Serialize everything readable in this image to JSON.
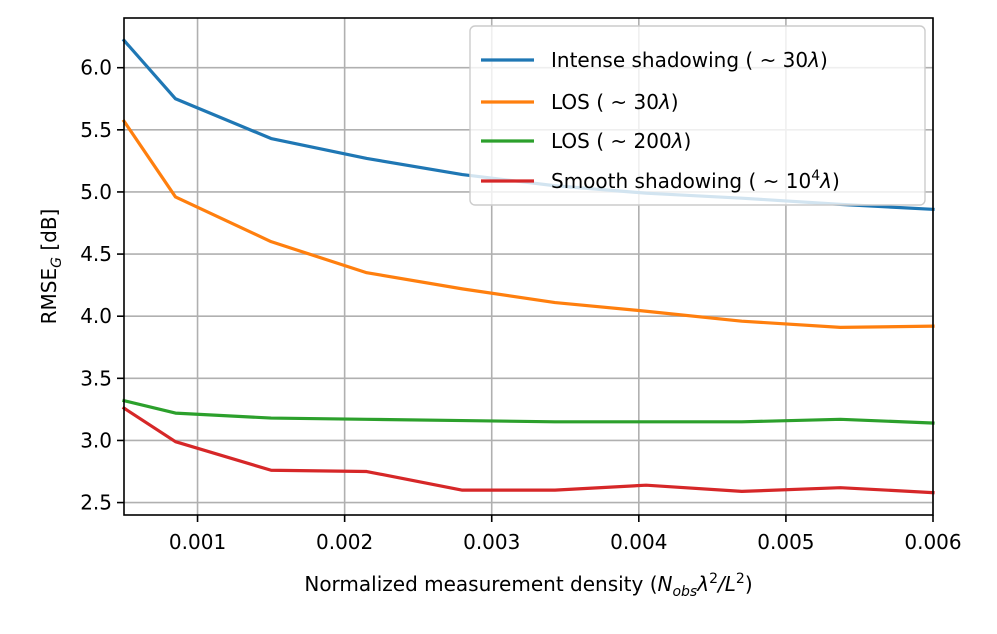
{
  "chart_data": {
    "type": "line",
    "xlabel": "Normalized measurement density (N_obs λ²/L²)",
    "ylabel": "RMSE_G [dB]",
    "xlim": [
      0.0005,
      0.006
    ],
    "ylim": [
      2.4,
      6.4
    ],
    "x_ticks": [
      "0.001",
      "0.002",
      "0.003",
      "0.004",
      "0.005",
      "0.006"
    ],
    "y_ticks": [
      "2.5",
      "3.0",
      "3.5",
      "4.0",
      "4.5",
      "5.0",
      "5.5",
      "6.0"
    ],
    "grid": true,
    "legend_position": "upper right",
    "x": [
      0.0005,
      0.00085,
      0.0015,
      0.00215,
      0.0028,
      0.00343,
      0.00405,
      0.0047,
      0.00537,
      0.006
    ],
    "series": [
      {
        "name": "Intense shadowing (~30λ)",
        "color": "#1f77b4",
        "values": [
          6.22,
          5.75,
          5.43,
          5.27,
          5.14,
          5.05,
          4.99,
          4.95,
          4.9,
          4.86
        ]
      },
      {
        "name": "LOS (~30λ)",
        "color": "#ff7f0e",
        "values": [
          5.57,
          4.96,
          4.6,
          4.35,
          4.22,
          4.11,
          4.04,
          3.96,
          3.91,
          3.92
        ]
      },
      {
        "name": "LOS (~200λ)",
        "color": "#2ca02c",
        "values": [
          3.32,
          3.22,
          3.18,
          3.17,
          3.16,
          3.15,
          3.15,
          3.15,
          3.17,
          3.14
        ]
      },
      {
        "name": "Smooth shadowing (~10⁴λ)",
        "color": "#d62728",
        "values": [
          3.26,
          2.99,
          2.76,
          2.75,
          2.6,
          2.6,
          2.64,
          2.59,
          2.62,
          2.58
        ]
      }
    ]
  },
  "legend_labels": [
    {
      "pre": "Intense shadowing ( ~ 30",
      "post": ")"
    },
    {
      "pre": "LOS ( ~ 30",
      "post": ")"
    },
    {
      "pre": "LOS ( ~ 200",
      "post": ")"
    },
    {
      "pre": "Smooth shadowing ( ~ 10",
      "sup": "4",
      "post": ")"
    }
  ],
  "xlabel_parts": {
    "pre": "Normalized measurement density (",
    "n": "N",
    "obs": "obs",
    "lam": "λ",
    "two": "2",
    "slash": "/",
    "L": "L",
    "post": ")"
  },
  "ylabel_parts": {
    "main": "RMSE",
    "sub": "G",
    "post": " [dB]"
  }
}
